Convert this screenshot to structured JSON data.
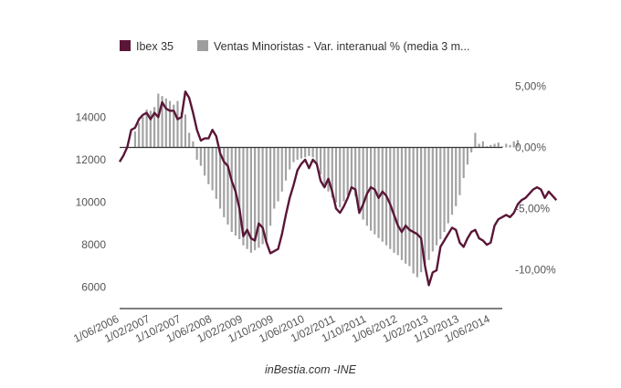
{
  "chart_data": {
    "type": "bar+line",
    "legend": [
      {
        "label": "Ibex 35",
        "color": "#5a1637",
        "kind": "line"
      },
      {
        "label": "Ventas Minoristas - Var. interanual % (media 3 m...",
        "color": "#9e9e9e",
        "kind": "bar"
      }
    ],
    "x_tick_labels": [
      "1/06/2006",
      "1/02/2007",
      "1/10/2007",
      "1/06/2008",
      "1/02/2009",
      "1/10/2009",
      "1/06/2010",
      "1/02/2011",
      "1/10/2011",
      "1/06/2012",
      "1/02/2013",
      "1/10/2013",
      "1/06/2014"
    ],
    "x_range": [
      "2006-06",
      "2014-09"
    ],
    "y_left": {
      "ticks": [
        "6000",
        "8000",
        "10000",
        "12000",
        "14000"
      ],
      "tick_values": [
        6000,
        8000,
        10000,
        12000,
        14000
      ],
      "range": [
        5000,
        16500
      ]
    },
    "y_right": {
      "ticks": [
        "5,00%",
        "0,00%",
        "-5,00%",
        "-10,00%"
      ],
      "tick_values": [
        5,
        0,
        -5,
        -10
      ],
      "range": [
        -13.17,
        6.83
      ]
    },
    "ibex35": {
      "start": "2006-06",
      "values": [
        11900,
        12200,
        12600,
        13400,
        13500,
        13900,
        14100,
        14200,
        13900,
        14200,
        14000,
        14700,
        14400,
        14300,
        14300,
        13900,
        14000,
        15200,
        14900,
        14200,
        13400,
        12900,
        13000,
        13000,
        13400,
        13100,
        12300,
        11900,
        11700,
        11000,
        10500,
        9700,
        8400,
        8700,
        8300,
        8200,
        9000,
        8800,
        8100,
        7600,
        7700,
        7800,
        8500,
        9400,
        10200,
        10800,
        11500,
        11800,
        12000,
        11600,
        12000,
        11800,
        11000,
        10700,
        11100,
        10500,
        9700,
        9500,
        9800,
        10200,
        10700,
        10600,
        9500,
        9900,
        10400,
        10700,
        10600,
        10200,
        10500,
        10300,
        9900,
        9400,
        8900,
        8600,
        8900,
        8700,
        8600,
        8500,
        8300,
        7000,
        6100,
        6700,
        6800,
        7900,
        8200,
        8500,
        8800,
        8700,
        8100,
        7900,
        8300,
        8600,
        8700,
        8300,
        8200,
        8000,
        8100,
        8900,
        9200,
        9300,
        9400,
        9300,
        9500,
        9900,
        10100,
        10200,
        10400,
        10600,
        10700,
        10600,
        10200,
        10500,
        10300,
        10100
      ]
    },
    "ventas_minoristas": {
      "start": "2006-10",
      "values": [
        1.3,
        2.0,
        2.5,
        3.1,
        3.0,
        3.3,
        4.4,
        4.2,
        4.0,
        3.8,
        3.5,
        3.8,
        2.9,
        2.7,
        1.2,
        0.5,
        -1.0,
        -1.5,
        -2.3,
        -3.0,
        -3.5,
        -4.2,
        -5.0,
        -5.7,
        -6.3,
        -6.9,
        -7.2,
        -7.5,
        -8.0,
        -8.3,
        -8.6,
        -8.4,
        -8.2,
        -7.9,
        -7.6,
        -6.4,
        -5.0,
        -4.4,
        -3.6,
        -2.7,
        -1.8,
        -1.2,
        -1.0,
        -0.9,
        -0.8,
        -0.7,
        -0.8,
        -1.3,
        -2.2,
        -3.0,
        -3.6,
        -4.1,
        -4.5,
        -4.9,
        -4.4,
        -3.9,
        -3.4,
        -4.0,
        -5.0,
        -5.9,
        -6.4,
        -6.8,
        -7.1,
        -7.4,
        -7.7,
        -8.0,
        -8.3,
        -8.6,
        -8.8,
        -9.2,
        -9.5,
        -9.7,
        -10.3,
        -10.6,
        -10.2,
        -9.6,
        -9.2,
        -8.5,
        -8.0,
        -7.5,
        -6.9,
        -6.2,
        -5.5,
        -4.8,
        -3.9,
        -2.5,
        -1.4,
        -0.4,
        1.2,
        0.3,
        0.5,
        0.1,
        0.2,
        0.3,
        0.4,
        0.1,
        0.3,
        0.2,
        0.5,
        0.6
      ]
    },
    "credit": "inBestia.com -INE",
    "grid": false
  }
}
